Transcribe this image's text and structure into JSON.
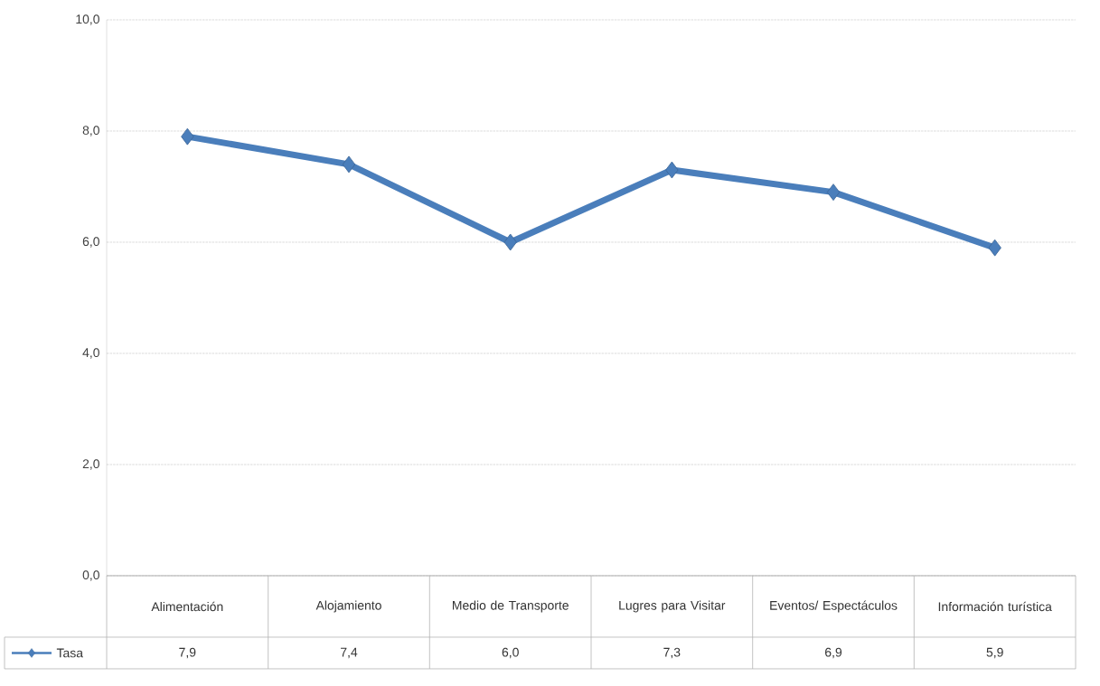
{
  "chart_data": {
    "type": "line",
    "categories": [
      "Alimentación",
      "Alojamiento",
      "Medio de Transporte",
      "Lugres para Visitar",
      "Eventos/ Espectáculos",
      "Información turística"
    ],
    "series": [
      {
        "name": "Tasa",
        "color": "#4a7ebb",
        "values": [
          7.9,
          7.4,
          6.0,
          7.3,
          6.9,
          5.9
        ],
        "value_labels": [
          "7,9",
          "7,4",
          "6,0",
          "7,3",
          "6,9",
          "5,9"
        ]
      }
    ],
    "ylim": [
      0,
      10
    ],
    "yticks": [
      {
        "value": 0,
        "label": "0,0"
      },
      {
        "value": 2,
        "label": "2,0"
      },
      {
        "value": 4,
        "label": "4,0"
      },
      {
        "value": 6,
        "label": "6,0"
      },
      {
        "value": 8,
        "label": "8,0"
      },
      {
        "value": 10,
        "label": "10,0"
      }
    ],
    "grid": "y",
    "legend": "bottom left",
    "marker": "diamond",
    "line_style": "solid"
  }
}
